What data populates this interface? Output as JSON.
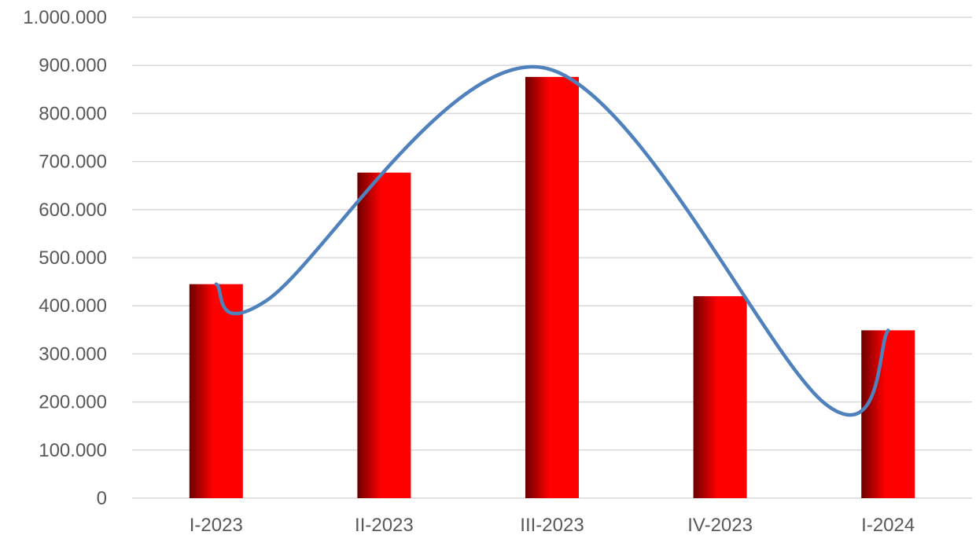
{
  "chart_data": {
    "type": "bar",
    "title": "",
    "xlabel": "",
    "ylabel": "",
    "categories": [
      "I-2023",
      "II-2023",
      "III-2023",
      "IV-2023",
      "I-2024"
    ],
    "series": [
      {
        "values": [
          445000,
          677000,
          876000,
          420000,
          349000
        ]
      }
    ],
    "trendline": {
      "type": "polynomial",
      "approx_values": [
        445000,
        411000,
        895000,
        195000,
        349000
      ]
    },
    "ylim": [
      0,
      1000000
    ],
    "yticks": [
      0,
      100000,
      200000,
      300000,
      400000,
      500000,
      600000,
      700000,
      800000,
      900000,
      1000000
    ],
    "ytick_labels": [
      "0",
      "100.000",
      "200.000",
      "300.000",
      "400.000",
      "500.000",
      "600.000",
      "700.000",
      "800.000",
      "900.000",
      "1.000.000"
    ],
    "grid": true,
    "legend": "none",
    "colors": {
      "bar_dark": "#6b0000",
      "bar_light": "#ff0000",
      "trendline": "#4f81bd",
      "grid": "#d9d9d9",
      "text": "#595959"
    }
  }
}
